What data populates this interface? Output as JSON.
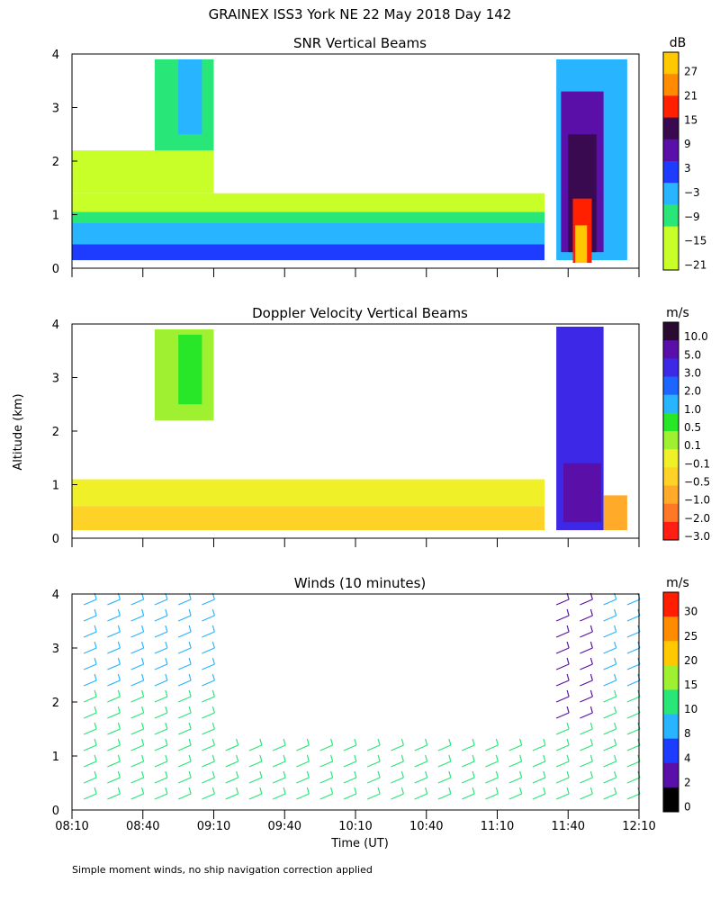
{
  "page": {
    "title": "GRAINEX ISS3 York NE  22 May 2018 Day 142",
    "ylabel": "Altitude (km)",
    "xlabel": "Time (UT)",
    "footnote": "Simple moment winds, no ship navigation correction applied"
  },
  "chart_data": [
    {
      "type": "heatmap",
      "title": "SNR Vertical Beams",
      "colorbar": {
        "unit": "dB",
        "ticks": [
          "27",
          "21",
          "15",
          "9",
          "3",
          "−3",
          "−9",
          "−15",
          "−21"
        ],
        "colors": [
          "#ffc800",
          "#ff8c00",
          "#ff2000",
          "#3a0a50",
          "#5a10a8",
          "#1e3cff",
          "#28b4ff",
          "#28e678",
          "#c8ff28",
          "#c8ff28"
        ]
      },
      "x_ticks": [
        "08:10",
        "08:40",
        "09:10",
        "09:40",
        "10:10",
        "10:40",
        "11:10",
        "11:40",
        "12:10"
      ],
      "y_ticks": [
        "0",
        "1",
        "2",
        "3",
        "4"
      ],
      "xlim": [
        "08:10",
        "12:10"
      ],
      "ylim": [
        0,
        4
      ],
      "regions": [
        {
          "t0": "08:10",
          "t1": "11:30",
          "z0": 0.15,
          "z1": 0.45,
          "color": "#1e3cff"
        },
        {
          "t0": "08:10",
          "t1": "11:30",
          "z0": 0.45,
          "z1": 0.85,
          "color": "#28b4ff"
        },
        {
          "t0": "08:10",
          "t1": "11:30",
          "z0": 0.85,
          "z1": 1.05,
          "color": "#28e678"
        },
        {
          "t0": "08:10",
          "t1": "11:30",
          "z0": 1.05,
          "z1": 1.4,
          "color": "#c8ff28"
        },
        {
          "t0": "08:10",
          "t1": "09:10",
          "z0": 1.4,
          "z1": 2.2,
          "color": "#c8ff28"
        },
        {
          "t0": "08:45",
          "t1": "09:10",
          "z0": 2.2,
          "z1": 3.9,
          "color": "#28e678"
        },
        {
          "t0": "08:55",
          "t1": "09:05",
          "z0": 2.5,
          "z1": 3.9,
          "color": "#28b4ff"
        },
        {
          "t0": "11:35",
          "t1": "12:05",
          "z0": 0.15,
          "z1": 3.9,
          "color": "#28b4ff"
        },
        {
          "t0": "11:37",
          "t1": "11:55",
          "z0": 0.3,
          "z1": 3.3,
          "color": "#5a10a8"
        },
        {
          "t0": "11:40",
          "t1": "11:52",
          "z0": 0.3,
          "z1": 2.5,
          "color": "#3a0a50"
        },
        {
          "t0": "11:42",
          "t1": "11:50",
          "z0": 0.1,
          "z1": 1.3,
          "color": "#ff2000"
        },
        {
          "t0": "11:43",
          "t1": "11:48",
          "z0": 0.1,
          "z1": 0.8,
          "color": "#ffc800"
        }
      ]
    },
    {
      "type": "heatmap",
      "title": "Doppler Velocity Vertical Beams",
      "colorbar": {
        "unit": "m/s",
        "ticks": [
          "10.0",
          "5.0",
          "3.0",
          "2.0",
          "1.0",
          "0.5",
          "0.1",
          "−0.1",
          "−0.5",
          "−1.0",
          "−2.0",
          "−3.0"
        ],
        "colors": [
          "#2a0a30",
          "#5a10a8",
          "#3c28e6",
          "#1e64ff",
          "#28b4ff",
          "#28e628",
          "#a0f032",
          "#f0f028",
          "#ffd228",
          "#ffaa28",
          "#ff7828",
          "#ff1e14"
        ]
      },
      "x_ticks": [
        "08:10",
        "08:40",
        "09:10",
        "09:40",
        "10:10",
        "10:40",
        "11:10",
        "11:40",
        "12:10"
      ],
      "y_ticks": [
        "0",
        "1",
        "2",
        "3",
        "4"
      ],
      "xlim": [
        "08:10",
        "12:10"
      ],
      "ylim": [
        0,
        4
      ],
      "regions": [
        {
          "t0": "08:10",
          "t1": "11:30",
          "z0": 0.15,
          "z1": 0.6,
          "color": "#ffd228"
        },
        {
          "t0": "08:10",
          "t1": "11:30",
          "z0": 0.6,
          "z1": 1.1,
          "color": "#f0f028"
        },
        {
          "t0": "08:45",
          "t1": "09:10",
          "z0": 2.2,
          "z1": 3.9,
          "color": "#a0f032"
        },
        {
          "t0": "08:55",
          "t1": "09:05",
          "z0": 2.5,
          "z1": 3.8,
          "color": "#28e628"
        },
        {
          "t0": "11:35",
          "t1": "11:55",
          "z0": 0.15,
          "z1": 3.95,
          "color": "#3c28e6"
        },
        {
          "t0": "11:38",
          "t1": "11:54",
          "z0": 0.3,
          "z1": 1.4,
          "color": "#5a10a8"
        },
        {
          "t0": "11:55",
          "t1": "12:05",
          "z0": 0.15,
          "z1": 0.8,
          "color": "#ffaa28"
        }
      ]
    },
    {
      "type": "scatter",
      "title": "Winds (10 minutes)",
      "colorbar": {
        "unit": "m/s",
        "ticks": [
          "30",
          "25",
          "20",
          "15",
          "10",
          "8",
          "4",
          "2",
          "0"
        ],
        "colors": [
          "#ff1e00",
          "#ff8c00",
          "#ffc800",
          "#a0f032",
          "#28e678",
          "#28b4ff",
          "#1e3cff",
          "#5a10a8",
          "#000000"
        ]
      },
      "x_ticks": [
        "08:10",
        "08:40",
        "09:10",
        "09:40",
        "10:10",
        "10:40",
        "11:10",
        "11:40",
        "12:10"
      ],
      "y_ticks": [
        "0",
        "1",
        "2",
        "3",
        "4"
      ],
      "xlim": [
        "08:10",
        "12:10"
      ],
      "ylim": [
        0,
        4
      ],
      "barb_times": [
        "08:15",
        "08:25",
        "08:35",
        "08:45",
        "08:55",
        "09:05",
        "09:15",
        "09:25",
        "09:35",
        "09:45",
        "09:55",
        "10:05",
        "10:15",
        "10:25",
        "10:35",
        "10:45",
        "10:55",
        "11:05",
        "11:15",
        "11:25",
        "11:35",
        "11:45",
        "11:55",
        "12:05"
      ],
      "barb_color_low": "#28e678",
      "barb_color_high": "#28b4ff",
      "barb_color_storm": "#5a10a8"
    }
  ]
}
